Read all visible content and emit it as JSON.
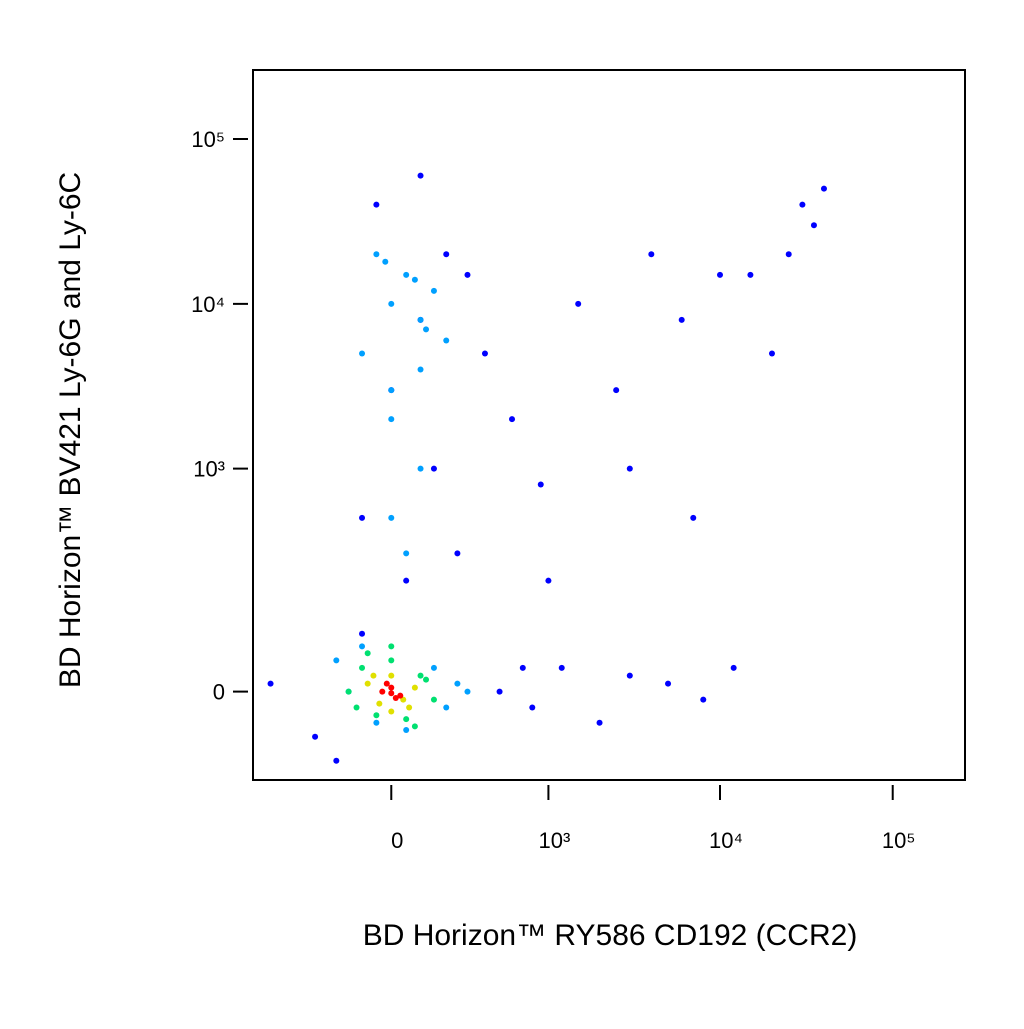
{
  "chart_data": {
    "type": "scatter",
    "x_label": "BD Horizon™ RY586 CD192 (CCR2)",
    "y_label": "BD Horizon™ BV421 Ly-6G and Ly-6C",
    "scale": "biexponential",
    "xlim": [
      -770,
      262144
    ],
    "ylim": [
      -140,
      262144
    ],
    "xticks": [
      0,
      {
        "value": 1000,
        "label": "10³"
      },
      {
        "value": 10000,
        "label": "10⁴"
      },
      {
        "value": 100000,
        "label": "10⁵"
      }
    ],
    "yticks": [
      0,
      {
        "value": 1000,
        "label": "10³"
      },
      {
        "value": 10000,
        "label": "10⁴"
      },
      {
        "value": 100000,
        "label": "10⁵"
      }
    ],
    "series": [
      {
        "color": "#0000ff",
        "x": [
          -600,
          -300,
          -200,
          -100,
          0,
          100,
          200,
          300,
          -100,
          50,
          150,
          250,
          -50,
          100,
          500,
          800,
          1200,
          2000,
          3000,
          5000,
          8000,
          12000,
          20000,
          30000,
          40000,
          35000,
          25000,
          15000,
          600,
          900,
          1500,
          2500,
          4000,
          7000,
          10000,
          1000,
          3000,
          6000,
          400,
          700
        ],
        "values": [
          10,
          -60,
          -100,
          80,
          3000,
          8000,
          20000,
          15000,
          500,
          200,
          1000,
          300,
          40000,
          60000,
          0,
          -20,
          30,
          -40,
          20,
          10,
          -10,
          30,
          5000,
          40000,
          50000,
          30000,
          20000,
          15000,
          2000,
          800,
          10000,
          3000,
          20000,
          500,
          15000,
          200,
          1000,
          8000,
          5000,
          30
        ]
      },
      {
        "color": "#00a0ff",
        "x": [
          -100,
          0,
          50,
          100,
          150,
          -50,
          0,
          100,
          200,
          -150,
          -50,
          50,
          150,
          0,
          100,
          -200,
          -100,
          200,
          250,
          300,
          0,
          50,
          -20,
          80,
          120
        ],
        "values": [
          5000,
          10000,
          15000,
          8000,
          12000,
          20000,
          3000,
          4000,
          6000,
          0,
          -40,
          -50,
          30,
          2000,
          1000,
          40,
          60,
          -20,
          10,
          0,
          500,
          300,
          18000,
          14000,
          7000
        ]
      },
      {
        "color": "#00e070",
        "x": [
          -150,
          -100,
          -50,
          0,
          50,
          100,
          150,
          -120,
          120,
          0,
          -80,
          80
        ],
        "values": [
          0,
          30,
          -30,
          40,
          -35,
          20,
          -10,
          -20,
          15,
          60,
          50,
          -45
        ]
      },
      {
        "color": "#e0e000",
        "x": [
          -80,
          -40,
          0,
          40,
          80,
          -60,
          60,
          0
        ],
        "values": [
          10,
          -15,
          20,
          -10,
          5,
          20,
          -20,
          -25
        ]
      },
      {
        "color": "#ff0000",
        "x": [
          -30,
          0,
          30,
          -15,
          15,
          0
        ],
        "values": [
          0,
          5,
          -5,
          10,
          -8,
          -2
        ]
      }
    ]
  }
}
